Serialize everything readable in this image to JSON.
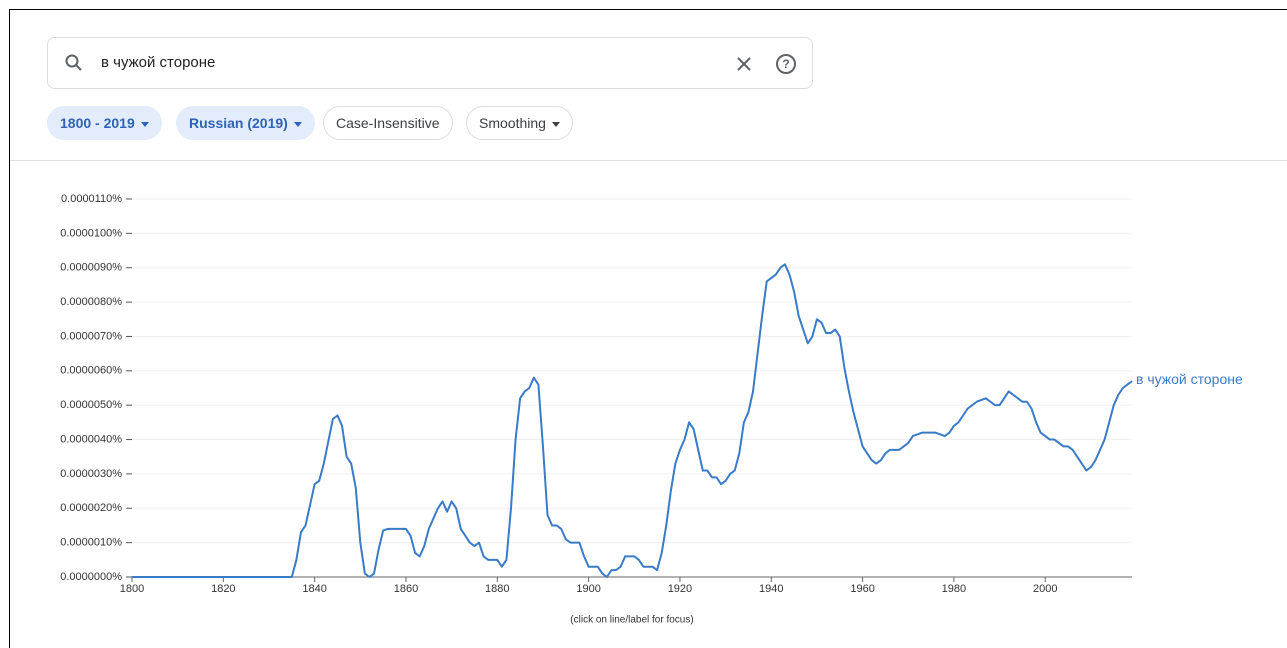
{
  "search": {
    "query": "в чужой стороне"
  },
  "chips": [
    "1800 - 2019",
    "Russian (2019)",
    "Case-Insensitive",
    "Smoothing"
  ],
  "chart_data": {
    "type": "line",
    "note": "(click on line/label for focus)",
    "x": [
      1800,
      1835,
      1836,
      1837,
      1838,
      1840,
      1841,
      1842,
      1844,
      1845,
      1846,
      1847,
      1848,
      1849,
      1850,
      1851,
      1852,
      1853,
      1854,
      1855,
      1856,
      1860,
      1861,
      1862,
      1863,
      1864,
      1865,
      1866,
      1867,
      1868,
      1869,
      1870,
      1871,
      1872,
      1874,
      1875,
      1876,
      1877,
      1878,
      1880,
      1881,
      1882,
      1883,
      1884,
      1885,
      1886,
      1887,
      1888,
      1889,
      1890,
      1891,
      1892,
      1893,
      1894,
      1895,
      1896,
      1898,
      1899,
      1900,
      1902,
      1903,
      1904,
      1905,
      1906,
      1907,
      1908,
      1910,
      1911,
      1912,
      1914,
      1915,
      1916,
      1917,
      1918,
      1919,
      1920,
      1921,
      1922,
      1923,
      1924,
      1925,
      1926,
      1927,
      1928,
      1929,
      1930,
      1931,
      1932,
      1933,
      1934,
      1935,
      1936,
      1937,
      1938,
      1939,
      1940,
      1941,
      1942,
      1943,
      1944,
      1945,
      1946,
      1947,
      1948,
      1949,
      1950,
      1951,
      1952,
      1953,
      1954,
      1955,
      1956,
      1957,
      1958,
      1959,
      1960,
      1961,
      1962,
      1963,
      1964,
      1965,
      1966,
      1968,
      1969,
      1970,
      1971,
      1973,
      1974,
      1976,
      1978,
      1979,
      1980,
      1981,
      1982,
      1983,
      1984,
      1985,
      1987,
      1988,
      1989,
      1990,
      1991,
      1992,
      1993,
      1994,
      1995,
      1996,
      1997,
      1998,
      1999,
      2000,
      2001,
      2002,
      2003,
      2004,
      2005,
      2006,
      2007,
      2008,
      2009,
      2010,
      2011,
      2012,
      2013,
      2014,
      2015,
      2016,
      2017,
      2018,
      2019
    ],
    "series": [
      {
        "name": "в чужой стороне",
        "color": "#3a7bc8",
        "values": [
          0,
          0,
          5e-07,
          1.3e-06,
          1.5e-06,
          2.7e-06,
          2.8e-06,
          3.3e-06,
          4.6e-06,
          4.7e-06,
          4.4e-06,
          3.5e-06,
          3.3e-06,
          2.6e-06,
          1e-06,
          1e-07,
          0,
          1e-07,
          8e-07,
          1.35e-06,
          1.4e-06,
          1.4e-06,
          1.2e-06,
          7e-07,
          6e-07,
          9e-07,
          1.4e-06,
          1.7e-06,
          2e-06,
          2.2e-06,
          1.9e-06,
          2.2e-06,
          2e-06,
          1.4e-06,
          1e-06,
          9e-07,
          1e-06,
          6e-07,
          5e-07,
          5e-07,
          3e-07,
          5e-07,
          2e-06,
          4e-06,
          5.2e-06,
          5.4e-06,
          5.5e-06,
          5.8e-06,
          5.6e-06,
          3.8e-06,
          1.8e-06,
          1.5e-06,
          1.5e-06,
          1.4e-06,
          1.1e-06,
          1e-06,
          1e-06,
          6e-07,
          3e-07,
          3e-07,
          1e-07,
          0,
          2e-07,
          2e-07,
          3e-07,
          6e-07,
          6e-07,
          5e-07,
          3e-07,
          3e-07,
          2e-07,
          7e-07,
          1.5e-06,
          2.5e-06,
          3.3e-06,
          3.7e-06,
          4e-06,
          4.5e-06,
          4.3e-06,
          3.7e-06,
          3.1e-06,
          3.1e-06,
          2.9e-06,
          2.9e-06,
          2.7e-06,
          2.8e-06,
          3e-06,
          3.1e-06,
          3.6e-06,
          4.5e-06,
          4.8e-06,
          5.4e-06,
          6.5e-06,
          7.6e-06,
          8.6e-06,
          8.7e-06,
          8.8e-06,
          9e-06,
          9.1e-06,
          8.8e-06,
          8.3e-06,
          7.6e-06,
          7.2e-06,
          6.8e-06,
          7e-06,
          7.5e-06,
          7.4e-06,
          7.1e-06,
          7.1e-06,
          7.2e-06,
          7e-06,
          6.1e-06,
          5.4e-06,
          4.8e-06,
          4.3e-06,
          3.8e-06,
          3.6e-06,
          3.4e-06,
          3.3e-06,
          3.4e-06,
          3.6e-06,
          3.7e-06,
          3.7e-06,
          3.8e-06,
          3.9e-06,
          4.1e-06,
          4.2e-06,
          4.2e-06,
          4.2e-06,
          4.1e-06,
          4.2e-06,
          4.4e-06,
          4.5e-06,
          4.7e-06,
          4.9e-06,
          5e-06,
          5.1e-06,
          5.2e-06,
          5.1e-06,
          5e-06,
          5e-06,
          5.2e-06,
          5.4e-06,
          5.3e-06,
          5.2e-06,
          5.1e-06,
          5.1e-06,
          4.9e-06,
          4.5e-06,
          4.2e-06,
          4.1e-06,
          4e-06,
          4e-06,
          3.9e-06,
          3.8e-06,
          3.8e-06,
          3.7e-06,
          3.5e-06,
          3.3e-06,
          3.1e-06,
          3.2e-06,
          3.4e-06,
          3.7e-06,
          4e-06,
          4.5e-06,
          5e-06,
          5.3e-06,
          5.5e-06,
          5.6e-06,
          5.7e-06
        ]
      }
    ],
    "xlim": [
      1800,
      2019
    ],
    "xticks": [
      1800,
      1820,
      1840,
      1860,
      1880,
      1900,
      1920,
      1940,
      1960,
      1980,
      2000
    ],
    "ylim": [
      0,
      1.1e-05
    ],
    "yticks": [
      {
        "value": 0,
        "label": "0.0000000%"
      },
      {
        "value": 1e-06,
        "label": "0.0000010%"
      },
      {
        "value": 2e-06,
        "label": "0.0000020%"
      },
      {
        "value": 3e-06,
        "label": "0.0000030%"
      },
      {
        "value": 4e-06,
        "label": "0.0000040%"
      },
      {
        "value": 5e-06,
        "label": "0.0000050%"
      },
      {
        "value": 6e-06,
        "label": "0.0000060%"
      },
      {
        "value": 7e-06,
        "label": "0.0000070%"
      },
      {
        "value": 8e-06,
        "label": "0.0000080%"
      },
      {
        "value": 9e-06,
        "label": "0.0000090%"
      },
      {
        "value": 1e-05,
        "label": "0.0000100%"
      },
      {
        "value": 1.1e-05,
        "label": "0.0000110%"
      }
    ],
    "grid": true
  }
}
